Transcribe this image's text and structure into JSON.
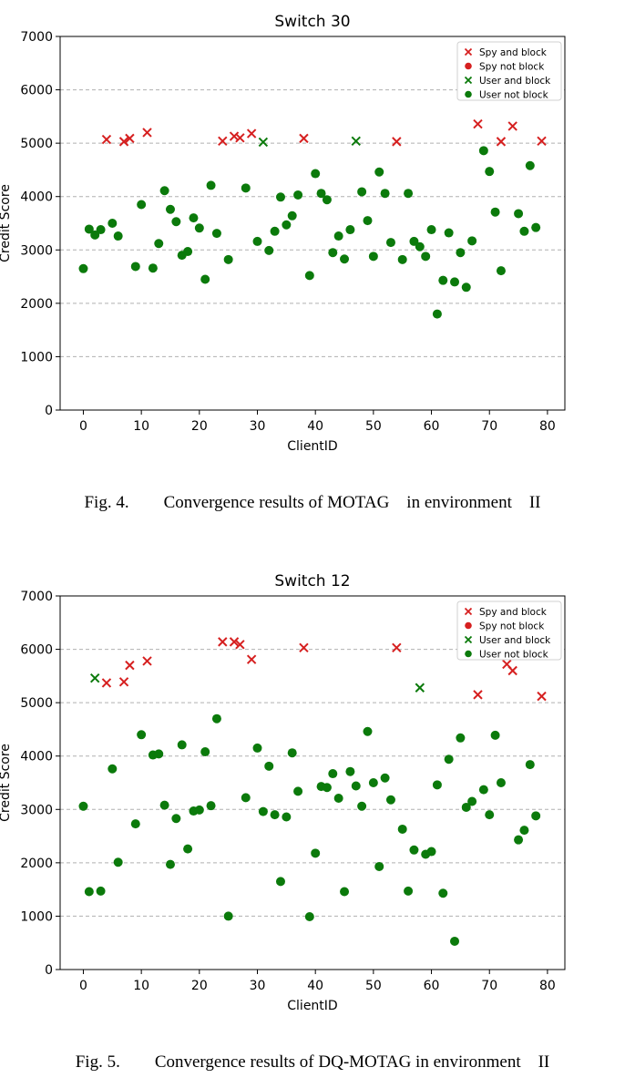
{
  "legend_labels": [
    "Spy and block",
    "Spy not block",
    "User and block",
    "User not block"
  ],
  "colors": {
    "spy": "#d62020",
    "user": "#0b7a0b"
  },
  "captions": [
    "Fig. 4.  Convergence results of MOTAG in environment II",
    "Fig. 5.  Convergence results of DQ-MOTAG in environment II"
  ],
  "chart_data": [
    {
      "type": "scatter",
      "title": "Switch 30",
      "xlabel": "ClientID",
      "ylabel": "Credit Score",
      "xlim": [
        -4,
        83
      ],
      "ylim": [
        0,
        7000
      ],
      "xticks": [
        0,
        10,
        20,
        30,
        40,
        50,
        60,
        70,
        80
      ],
      "yticks": [
        0,
        1000,
        2000,
        3000,
        4000,
        5000,
        6000,
        7000
      ],
      "grid": "y-dashed",
      "legend": "top-right",
      "series": [
        {
          "name": "Spy and block",
          "marker": "x",
          "color": "red",
          "points": [
            [
              4,
              5070
            ],
            [
              7,
              5030
            ],
            [
              8,
              5090
            ],
            [
              11,
              5200
            ],
            [
              24,
              5040
            ],
            [
              26,
              5130
            ],
            [
              27,
              5100
            ],
            [
              29,
              5180
            ],
            [
              38,
              5090
            ],
            [
              54,
              5030
            ],
            [
              68,
              5360
            ],
            [
              72,
              5030
            ],
            [
              74,
              5320
            ],
            [
              79,
              5040
            ]
          ]
        },
        {
          "name": "Spy not block",
          "marker": "o",
          "color": "red",
          "points": []
        },
        {
          "name": "User and block",
          "marker": "x",
          "color": "green",
          "points": [
            [
              31,
              5020
            ],
            [
              47,
              5040
            ]
          ]
        },
        {
          "name": "User not block",
          "marker": "o",
          "color": "green",
          "points": [
            [
              0,
              2650
            ],
            [
              1,
              3390
            ],
            [
              2,
              3280
            ],
            [
              3,
              3380
            ],
            [
              5,
              3500
            ],
            [
              6,
              3260
            ],
            [
              9,
              2690
            ],
            [
              10,
              3850
            ],
            [
              12,
              2660
            ],
            [
              13,
              3120
            ],
            [
              14,
              4110
            ],
            [
              15,
              3760
            ],
            [
              16,
              3530
            ],
            [
              17,
              2900
            ],
            [
              18,
              2970
            ],
            [
              19,
              3600
            ],
            [
              20,
              3410
            ],
            [
              21,
              2450
            ],
            [
              22,
              4210
            ],
            [
              23,
              3310
            ],
            [
              25,
              2820
            ],
            [
              28,
              4160
            ],
            [
              30,
              3160
            ],
            [
              32,
              2990
            ],
            [
              33,
              3350
            ],
            [
              34,
              3990
            ],
            [
              35,
              3470
            ],
            [
              36,
              3640
            ],
            [
              37,
              4030
            ],
            [
              39,
              2520
            ],
            [
              40,
              4430
            ],
            [
              41,
              4060
            ],
            [
              42,
              3940
            ],
            [
              43,
              2950
            ],
            [
              44,
              3260
            ],
            [
              45,
              2830
            ],
            [
              46,
              3380
            ],
            [
              48,
              4090
            ],
            [
              49,
              3550
            ],
            [
              50,
              2880
            ],
            [
              51,
              4460
            ],
            [
              52,
              4060
            ],
            [
              53,
              3140
            ],
            [
              55,
              2820
            ],
            [
              56,
              4060
            ],
            [
              57,
              3160
            ],
            [
              58,
              3060
            ],
            [
              59,
              2880
            ],
            [
              60,
              3380
            ],
            [
              61,
              1800
            ],
            [
              62,
              2430
            ],
            [
              63,
              3320
            ],
            [
              64,
              2400
            ],
            [
              65,
              2950
            ],
            [
              66,
              2300
            ],
            [
              67,
              3170
            ],
            [
              69,
              4860
            ],
            [
              70,
              4470
            ],
            [
              71,
              3710
            ],
            [
              72,
              2610
            ],
            [
              75,
              3680
            ],
            [
              76,
              3350
            ],
            [
              77,
              4580
            ],
            [
              78,
              3420
            ]
          ]
        }
      ]
    },
    {
      "type": "scatter",
      "title": "Switch 12",
      "xlabel": "ClientID",
      "ylabel": "Credit Score",
      "xlim": [
        -4,
        83
      ],
      "ylim": [
        0,
        7000
      ],
      "xticks": [
        0,
        10,
        20,
        30,
        40,
        50,
        60,
        70,
        80
      ],
      "yticks": [
        0,
        1000,
        2000,
        3000,
        4000,
        5000,
        6000,
        7000
      ],
      "grid": "y-dashed",
      "legend": "top-right",
      "series": [
        {
          "name": "Spy and block",
          "marker": "x",
          "color": "red",
          "points": [
            [
              4,
              5370
            ],
            [
              7,
              5390
            ],
            [
              8,
              5700
            ],
            [
              11,
              5780
            ],
            [
              24,
              6140
            ],
            [
              26,
              6140
            ],
            [
              27,
              6090
            ],
            [
              29,
              5810
            ],
            [
              38,
              6030
            ],
            [
              54,
              6030
            ],
            [
              68,
              5150
            ],
            [
              73,
              5720
            ],
            [
              74,
              5600
            ],
            [
              79,
              5120
            ]
          ]
        },
        {
          "name": "Spy not block",
          "marker": "o",
          "color": "red",
          "points": []
        },
        {
          "name": "User and block",
          "marker": "x",
          "color": "green",
          "points": [
            [
              2,
              5460
            ],
            [
              58,
              5280
            ]
          ]
        },
        {
          "name": "User not block",
          "marker": "o",
          "color": "green",
          "points": [
            [
              0,
              3060
            ],
            [
              1,
              1460
            ],
            [
              3,
              1470
            ],
            [
              5,
              3760
            ],
            [
              6,
              2010
            ],
            [
              9,
              2730
            ],
            [
              10,
              4400
            ],
            [
              12,
              4020
            ],
            [
              13,
              4040
            ],
            [
              14,
              3080
            ],
            [
              15,
              1970
            ],
            [
              16,
              2830
            ],
            [
              17,
              4210
            ],
            [
              18,
              2260
            ],
            [
              19,
              2970
            ],
            [
              20,
              2990
            ],
            [
              21,
              4080
            ],
            [
              22,
              3070
            ],
            [
              23,
              4700
            ],
            [
              25,
              1000
            ],
            [
              28,
              3220
            ],
            [
              30,
              4150
            ],
            [
              31,
              2960
            ],
            [
              32,
              3810
            ],
            [
              33,
              2900
            ],
            [
              34,
              1650
            ],
            [
              35,
              2860
            ],
            [
              36,
              4060
            ],
            [
              37,
              3340
            ],
            [
              39,
              990
            ],
            [
              40,
              2180
            ],
            [
              41,
              3430
            ],
            [
              42,
              3410
            ],
            [
              43,
              3670
            ],
            [
              44,
              3210
            ],
            [
              45,
              1460
            ],
            [
              46,
              3710
            ],
            [
              47,
              3440
            ],
            [
              48,
              3060
            ],
            [
              49,
              4460
            ],
            [
              50,
              3500
            ],
            [
              51,
              1930
            ],
            [
              52,
              3590
            ],
            [
              53,
              3180
            ],
            [
              55,
              2630
            ],
            [
              56,
              1470
            ],
            [
              57,
              2240
            ],
            [
              59,
              2160
            ],
            [
              60,
              2210
            ],
            [
              61,
              3460
            ],
            [
              62,
              1430
            ],
            [
              63,
              3940
            ],
            [
              64,
              530
            ],
            [
              65,
              4340
            ],
            [
              66,
              3040
            ],
            [
              67,
              3150
            ],
            [
              69,
              3370
            ],
            [
              70,
              2900
            ],
            [
              71,
              4390
            ],
            [
              72,
              3500
            ],
            [
              75,
              2430
            ],
            [
              76,
              2610
            ],
            [
              77,
              3840
            ],
            [
              78,
              2880
            ]
          ]
        }
      ]
    }
  ]
}
